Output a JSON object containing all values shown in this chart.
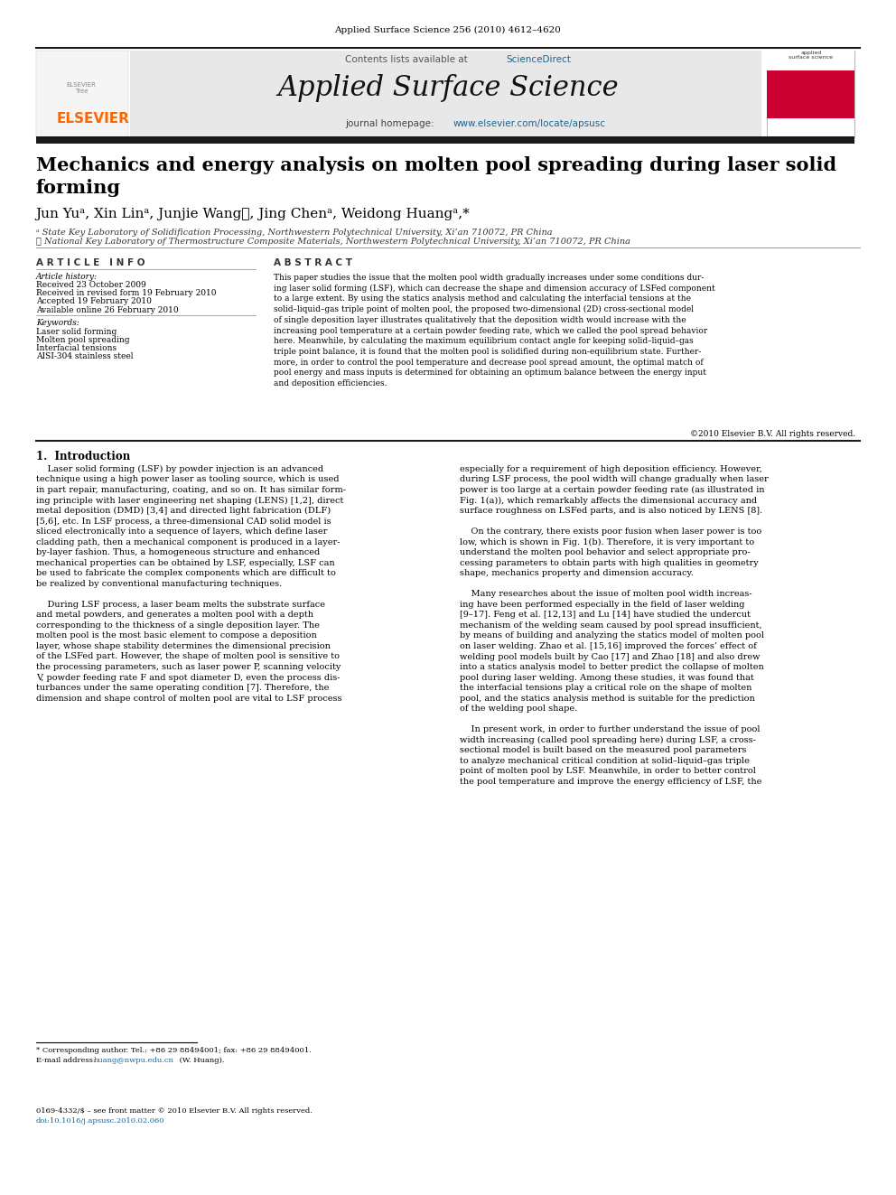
{
  "page_width": 9.92,
  "page_height": 13.23,
  "bg_color": "#ffffff",
  "journal_header_text": "Applied Surface Science 256 (2010) 4612–4620",
  "journal_header_color": "#000000",
  "journal_header_fontsize": 7.5,
  "contents_text": "Contents lists available at ",
  "sciencedirect_text": "ScienceDirect",
  "sciencedirect_color": "#1a6496",
  "journal_name": "Applied Surface Science",
  "journal_name_fontsize": 22,
  "journal_homepage_text": "journal homepage: ",
  "journal_url": "www.elsevier.com/locate/apsusc",
  "journal_url_color": "#1a6496",
  "header_bg_color": "#e8e8e8",
  "header_bar_color": "#1a1a1a",
  "elsevier_text": "ELSEVIER",
  "elsevier_color": "#ff6600",
  "paper_title": "Mechanics and energy analysis on molten pool spreading during laser solid\nforming",
  "paper_title_fontsize": 15,
  "authors": "Jun Yuᵃ, Xin Linᵃ, Junjie Wang၂, Jing Chenᵃ, Weidong Huangᵃ,*",
  "authors_fontsize": 11,
  "affil_a": "ᵃ State Key Laboratory of Solidification Processing, Northwestern Polytechnical University, Xi’an 710072, PR China",
  "affil_b": "၂ National Key Laboratory of Thermostructure Composite Materials, Northwestern Polytechnical University, Xi’an 710072, PR China",
  "affil_fontsize": 7,
  "article_info_label": "A R T I C L E   I N F O",
  "abstract_label": "A B S T R A C T",
  "article_history_label": "Article history:",
  "received_text": "Received 23 October 2009",
  "revised_text": "Received in revised form 19 February 2010",
  "accepted_text": "Accepted 19 February 2010",
  "available_text": "Available online 26 February 2010",
  "keywords_label": "Keywords:",
  "keyword1": "Laser solid forming",
  "keyword2": "Molten pool spreading",
  "keyword3": "Interfacial tensions",
  "keyword4": "AISI-304 stainless steel",
  "abstract_text": "This paper studies the issue that the molten pool width gradually increases under some conditions during laser solid forming (LSF), which can decrease the shape and dimension accuracy of LSFed component to a large extent. By using the statics analysis method and calculating the interfacial tensions at the solid–liquid–gas triple point of molten pool, the proposed two-dimensional (2D) cross-sectional model of single deposition layer illustrates qualitatively that the deposition width would increase with the increasing pool temperature at a certain powder feeding rate, which we called the pool spread behavior here. Meanwhile, by calculating the maximum equilibrium contact angle for keeping solid–liquid–gas triple point balance, it is found that the molten pool is solidified during non-equilibrium state. Furthermore, in order to control the pool temperature and decrease pool spread amount, the optimal match of pool energy and mass inputs is determined for obtaining an optimum balance between the energy input and deposition efficiencies.",
  "copyright_text": "©2010 Elsevier B.V. All rights reserved.",
  "section1_label": "1.  Introduction",
  "footnote_star": "* Corresponding author. Tel.: +86 29 88494001; fax: +86 29 88494001.",
  "footnote_email_label": "E-mail address: ",
  "footnote_email": "huang@nwpu.edu.cn",
  "footnote_email_color": "#1a6496",
  "footnote_email2": " (W. Huang).",
  "footer_text": "0169-4332/$ – see front matter © 2010 Elsevier B.V. All rights reserved.",
  "footer_doi": "doi:10.1016/j.apsusc.2010.02.060",
  "footer_doi_color": "#1a6496",
  "label_color": "#333333",
  "text_color": "#000000",
  "link_color": "#1a6496",
  "body_fontsize": 7.5,
  "small_fontsize": 6.5,
  "label_fontsize": 7.5
}
